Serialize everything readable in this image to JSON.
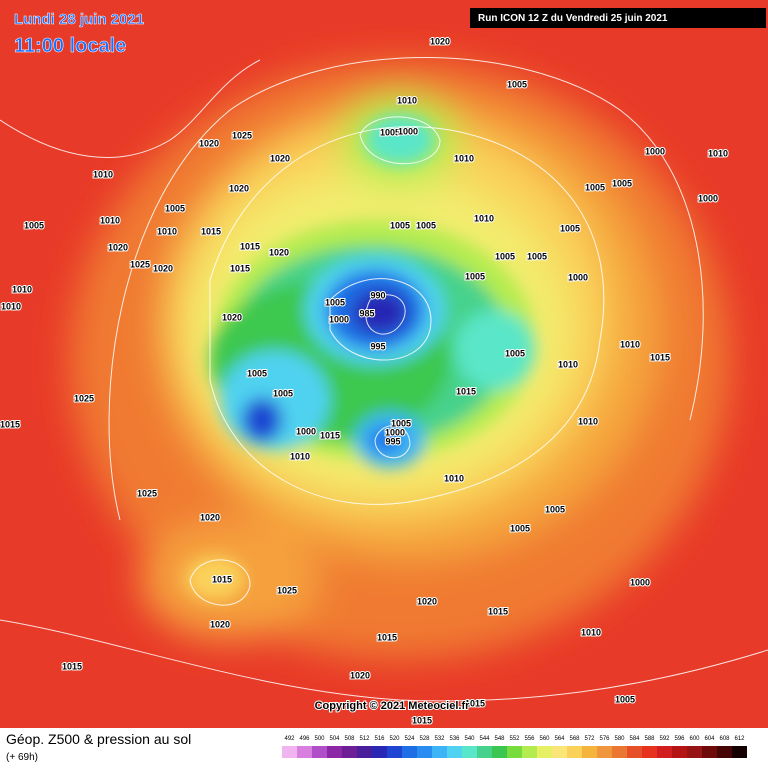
{
  "header": {
    "date": "Lundi 28 juin 2021",
    "time": "11:00 locale",
    "run": "Run ICON 12 Z du Vendredi 25 juin 2021"
  },
  "footer": {
    "copyright": "Copyright © 2021 Meteociel.fr",
    "title": "Géop. Z500 & pression au sol",
    "lead": "(+ 69h)"
  },
  "colorbar": {
    "ticks": [
      492,
      496,
      500,
      504,
      508,
      512,
      516,
      520,
      524,
      528,
      532,
      536,
      540,
      544,
      548,
      552,
      556,
      560,
      564,
      568,
      572,
      576,
      580,
      584,
      588,
      592,
      596,
      600,
      604,
      608,
      612
    ],
    "colors": [
      "#f0b4f0",
      "#d880e0",
      "#b050c8",
      "#8c28a8",
      "#6e1e96",
      "#4b1e9b",
      "#2828b4",
      "#1e46d2",
      "#1e6ee6",
      "#288cf0",
      "#3cb4f5",
      "#50d2f0",
      "#5ae6c8",
      "#46d28c",
      "#3cc850",
      "#78dc3c",
      "#b4ec50",
      "#e6f064",
      "#fae678",
      "#fad25a",
      "#f5b43c",
      "#f0963c",
      "#eb7832",
      "#e65028",
      "#e6321e",
      "#d21e1e",
      "#b41414",
      "#961414",
      "#6e0a0a",
      "#460505",
      "#140000"
    ]
  },
  "isobar_labels": [
    "1020",
    "1005",
    "1010",
    "1005",
    "1000",
    "1010",
    "1025",
    "1020",
    "1020",
    "1010",
    "1020",
    "1005",
    "1010",
    "1005",
    "1015",
    "1010",
    "1020",
    "1015",
    "1020",
    "1015",
    "1025",
    "1020",
    "1010",
    "1010",
    "1020",
    "1005",
    "990",
    "985",
    "1000",
    "995",
    "1005",
    "1005",
    "1000",
    "1015",
    "1010",
    "1005",
    "1000",
    "995",
    "1010",
    "1005",
    "1010",
    "1015",
    "1005",
    "1000",
    "1005",
    "1005",
    "1005",
    "1005",
    "1010",
    "1005",
    "1000",
    "1010",
    "1005",
    "1005",
    "1000",
    "1025",
    "1015",
    "1025",
    "1020",
    "1015",
    "1025",
    "1020",
    "1015",
    "1015",
    "1020",
    "1015",
    "1005",
    "1005",
    "1010",
    "1000",
    "1005",
    "1020",
    "1015",
    "1015",
    "1010",
    "1015",
    "1010"
  ]
}
